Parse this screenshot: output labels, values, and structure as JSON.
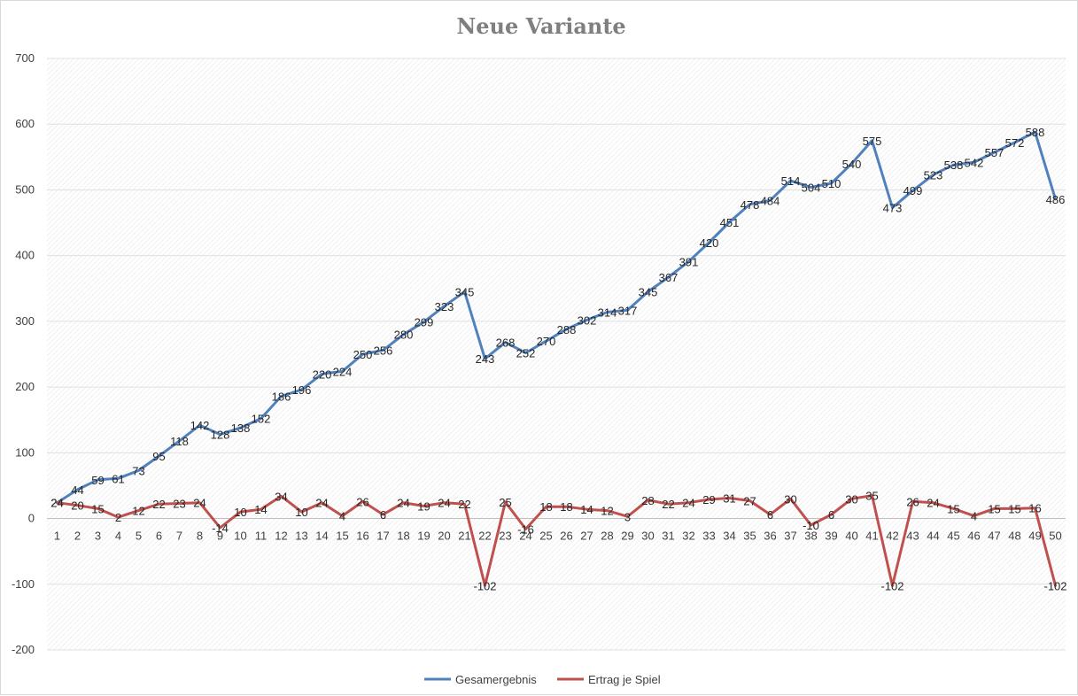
{
  "chart_data": {
    "type": "line",
    "title": "Neue Variante",
    "xlabel": "",
    "ylabel": "",
    "ylim": [
      -200,
      700
    ],
    "yticks": [
      -200,
      -100,
      0,
      100,
      200,
      300,
      400,
      500,
      600,
      700
    ],
    "grid": true,
    "legend_position": "bottom",
    "categories": [
      "1",
      "2",
      "3",
      "4",
      "5",
      "6",
      "7",
      "8",
      "9",
      "10",
      "11",
      "12",
      "13",
      "14",
      "15",
      "16",
      "17",
      "18",
      "19",
      "20",
      "21",
      "22",
      "23",
      "24",
      "25",
      "26",
      "27",
      "28",
      "29",
      "30",
      "31",
      "32",
      "33",
      "34",
      "35",
      "36",
      "37",
      "38",
      "39",
      "40",
      "41",
      "42",
      "43",
      "44",
      "45",
      "46",
      "47",
      "48",
      "49",
      "50"
    ],
    "series": [
      {
        "name": "Gesamergebnis",
        "color": "#4f81bd",
        "values": [
          24,
          44,
          59,
          61,
          73,
          95,
          118,
          142,
          128,
          138,
          152,
          186,
          196,
          220,
          224,
          250,
          256,
          280,
          299,
          323,
          345,
          243,
          268,
          252,
          270,
          288,
          302,
          314,
          317,
          345,
          367,
          391,
          420,
          451,
          478,
          484,
          514,
          504,
          510,
          540,
          575,
          473,
          499,
          523,
          538,
          542,
          557,
          572,
          588,
          486
        ]
      },
      {
        "name": "Ertrag je Spiel",
        "color": "#c0504d",
        "values": [
          24,
          20,
          15,
          2,
          12,
          22,
          23,
          24,
          -14,
          10,
          14,
          34,
          10,
          24,
          4,
          26,
          6,
          24,
          19,
          24,
          22,
          -102,
          25,
          -16,
          18,
          18,
          14,
          12,
          3,
          28,
          22,
          24,
          29,
          31,
          27,
          6,
          30,
          -10,
          6,
          30,
          35,
          -102,
          26,
          24,
          15,
          4,
          15,
          15,
          16,
          -102
        ]
      }
    ]
  }
}
